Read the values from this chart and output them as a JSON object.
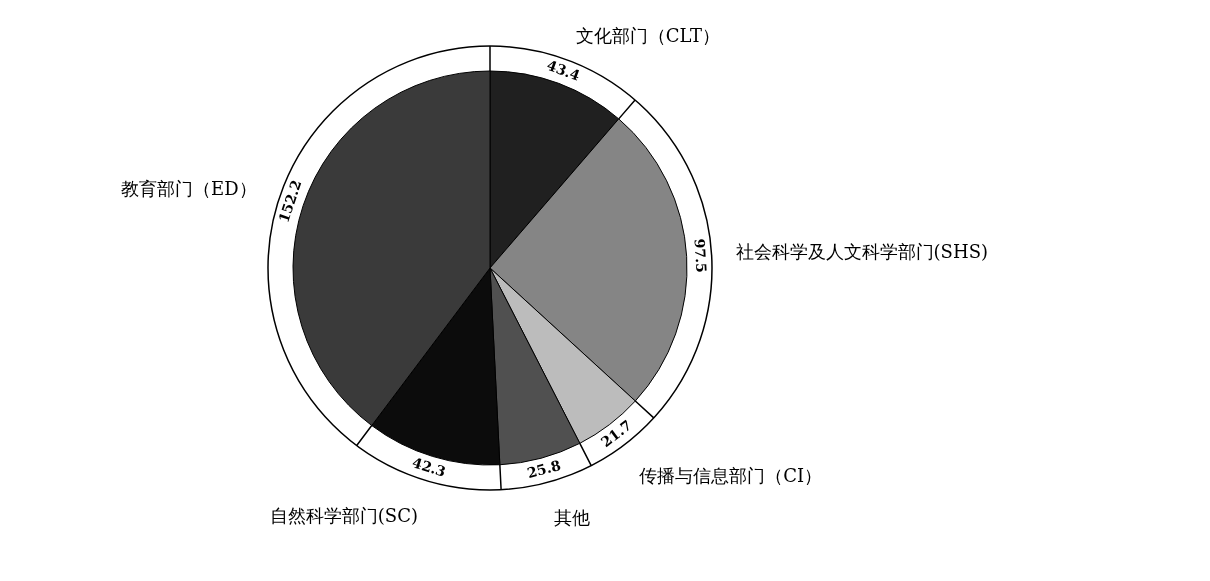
{
  "chart_data": {
    "type": "pie",
    "data_labels": true,
    "categories": [
      "文化部门（CLT）",
      "社会科学及人文科学部门(SHS)",
      "传播与信息部门（CI）",
      "其他",
      "自然科学部门(SC)",
      "教育部门（ED）"
    ],
    "values": [
      43.4,
      97.5,
      21.7,
      25.8,
      42.3,
      152.2
    ],
    "colors": [
      "#202020",
      "#858585",
      "#bcbcbc",
      "#505050",
      "#0c0c0c",
      "#3a3a3a"
    ]
  }
}
